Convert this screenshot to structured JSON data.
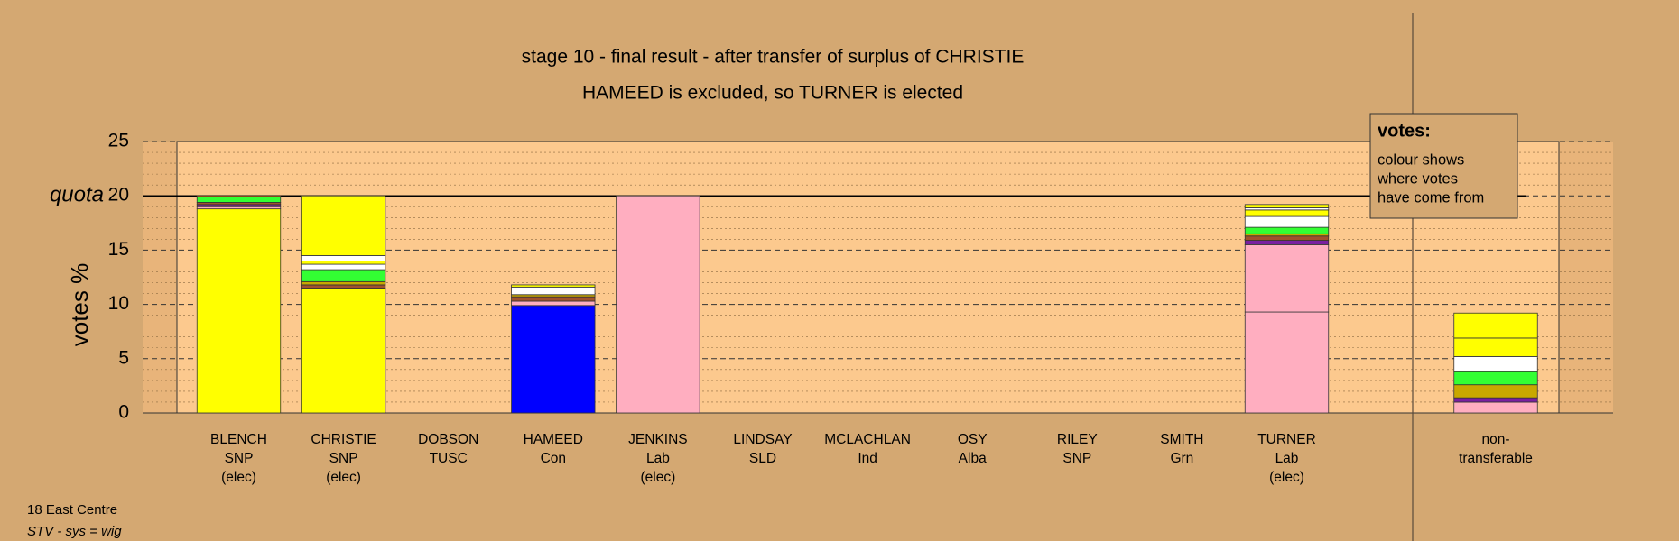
{
  "chart_data": {
    "type": "stacked-bar",
    "title": "stage 10 - final result - after transfer of surplus of CHRISTIE",
    "subtitle": "HAMEED is excluded, so TURNER is elected",
    "y_label": "votes %",
    "quota_label": "quota",
    "quota": 20,
    "ylim": [
      0,
      25
    ],
    "yticks": [
      0,
      5,
      10,
      15,
      20,
      25
    ],
    "grid": true,
    "categories": [
      [
        "BLENCH",
        "SNP",
        "(elec)"
      ],
      [
        "CHRISTIE",
        "SNP",
        "(elec)"
      ],
      [
        "DOBSON",
        "TUSC"
      ],
      [
        "HAMEED",
        "Con"
      ],
      [
        "JENKINS",
        "Lab",
        "(elec)"
      ],
      [
        "LINDSAY",
        "SLD"
      ],
      [
        "MCLACHLAN",
        "Ind"
      ],
      [
        "OSY",
        "Alba"
      ],
      [
        "RILEY",
        "SNP"
      ],
      [
        "SMITH",
        "Grn"
      ],
      [
        "TURNER",
        "Lab",
        "(elec)"
      ],
      [
        "non-",
        "transferable"
      ]
    ],
    "stacks": [
      [
        {
          "value": 18.8,
          "color": "#ffff00"
        },
        {
          "value": 0.2,
          "color": "#ffaec0"
        },
        {
          "value": 0.2,
          "color": "#7a1fa0"
        },
        {
          "value": 0.2,
          "color": "#a0522d"
        },
        {
          "value": 0.5,
          "color": "#33ff33"
        },
        {
          "value": 0.1,
          "color": "#ff6600"
        }
      ],
      [
        {
          "value": 11.5,
          "color": "#ffff00"
        },
        {
          "value": 0.3,
          "color": "#a0522d"
        },
        {
          "value": 0.3,
          "color": "#c8a800"
        },
        {
          "value": 1.1,
          "color": "#33ff33"
        },
        {
          "value": 0.5,
          "color": "#ffffff"
        },
        {
          "value": 0.3,
          "color": "#ffff00"
        },
        {
          "value": 0.5,
          "color": "#ffffff"
        },
        {
          "value": 5.5,
          "color": "#ffff00"
        }
      ],
      [],
      [
        {
          "value": 9.9,
          "color": "#0000ff"
        },
        {
          "value": 0.4,
          "color": "#ffaec0"
        },
        {
          "value": 0.4,
          "color": "#a0522d"
        },
        {
          "value": 0.2,
          "color": "#c8a800"
        },
        {
          "value": 0.7,
          "color": "#ffffff"
        },
        {
          "value": 0.2,
          "color": "#ffff00"
        }
      ],
      [
        {
          "value": 20,
          "color": "#ffaec0"
        }
      ],
      [],
      [],
      [],
      [],
      [],
      [
        {
          "value": 9.3,
          "color": "#ffaec0"
        },
        {
          "value": 6.2,
          "color": "#ffaec0"
        },
        {
          "value": 0.4,
          "color": "#7a1fa0"
        },
        {
          "value": 0.4,
          "color": "#a0522d"
        },
        {
          "value": 0.2,
          "color": "#c8a800"
        },
        {
          "value": 0.6,
          "color": "#33ff33"
        },
        {
          "value": 1.0,
          "color": "#ffffff"
        },
        {
          "value": 0.6,
          "color": "#ffff00"
        },
        {
          "value": 0.2,
          "color": "#ffffff"
        },
        {
          "value": 0.3,
          "color": "#ffff00"
        }
      ],
      [
        {
          "value": 1.0,
          "color": "#ffaec0"
        },
        {
          "value": 0.4,
          "color": "#7a1fa0"
        },
        {
          "value": 1.2,
          "color": "#c8a800"
        },
        {
          "value": 1.2,
          "color": "#33ff33"
        },
        {
          "value": 1.4,
          "color": "#ffffff"
        },
        {
          "value": 1.7,
          "color": "#ffff00"
        },
        {
          "value": 2.3,
          "color": "#ffff00"
        }
      ]
    ],
    "legend": {
      "title": "votes:",
      "lines": [
        "colour shows",
        "where votes",
        "have come from"
      ]
    },
    "footer": [
      "18 East Centre",
      "STV - sys = wig"
    ]
  }
}
